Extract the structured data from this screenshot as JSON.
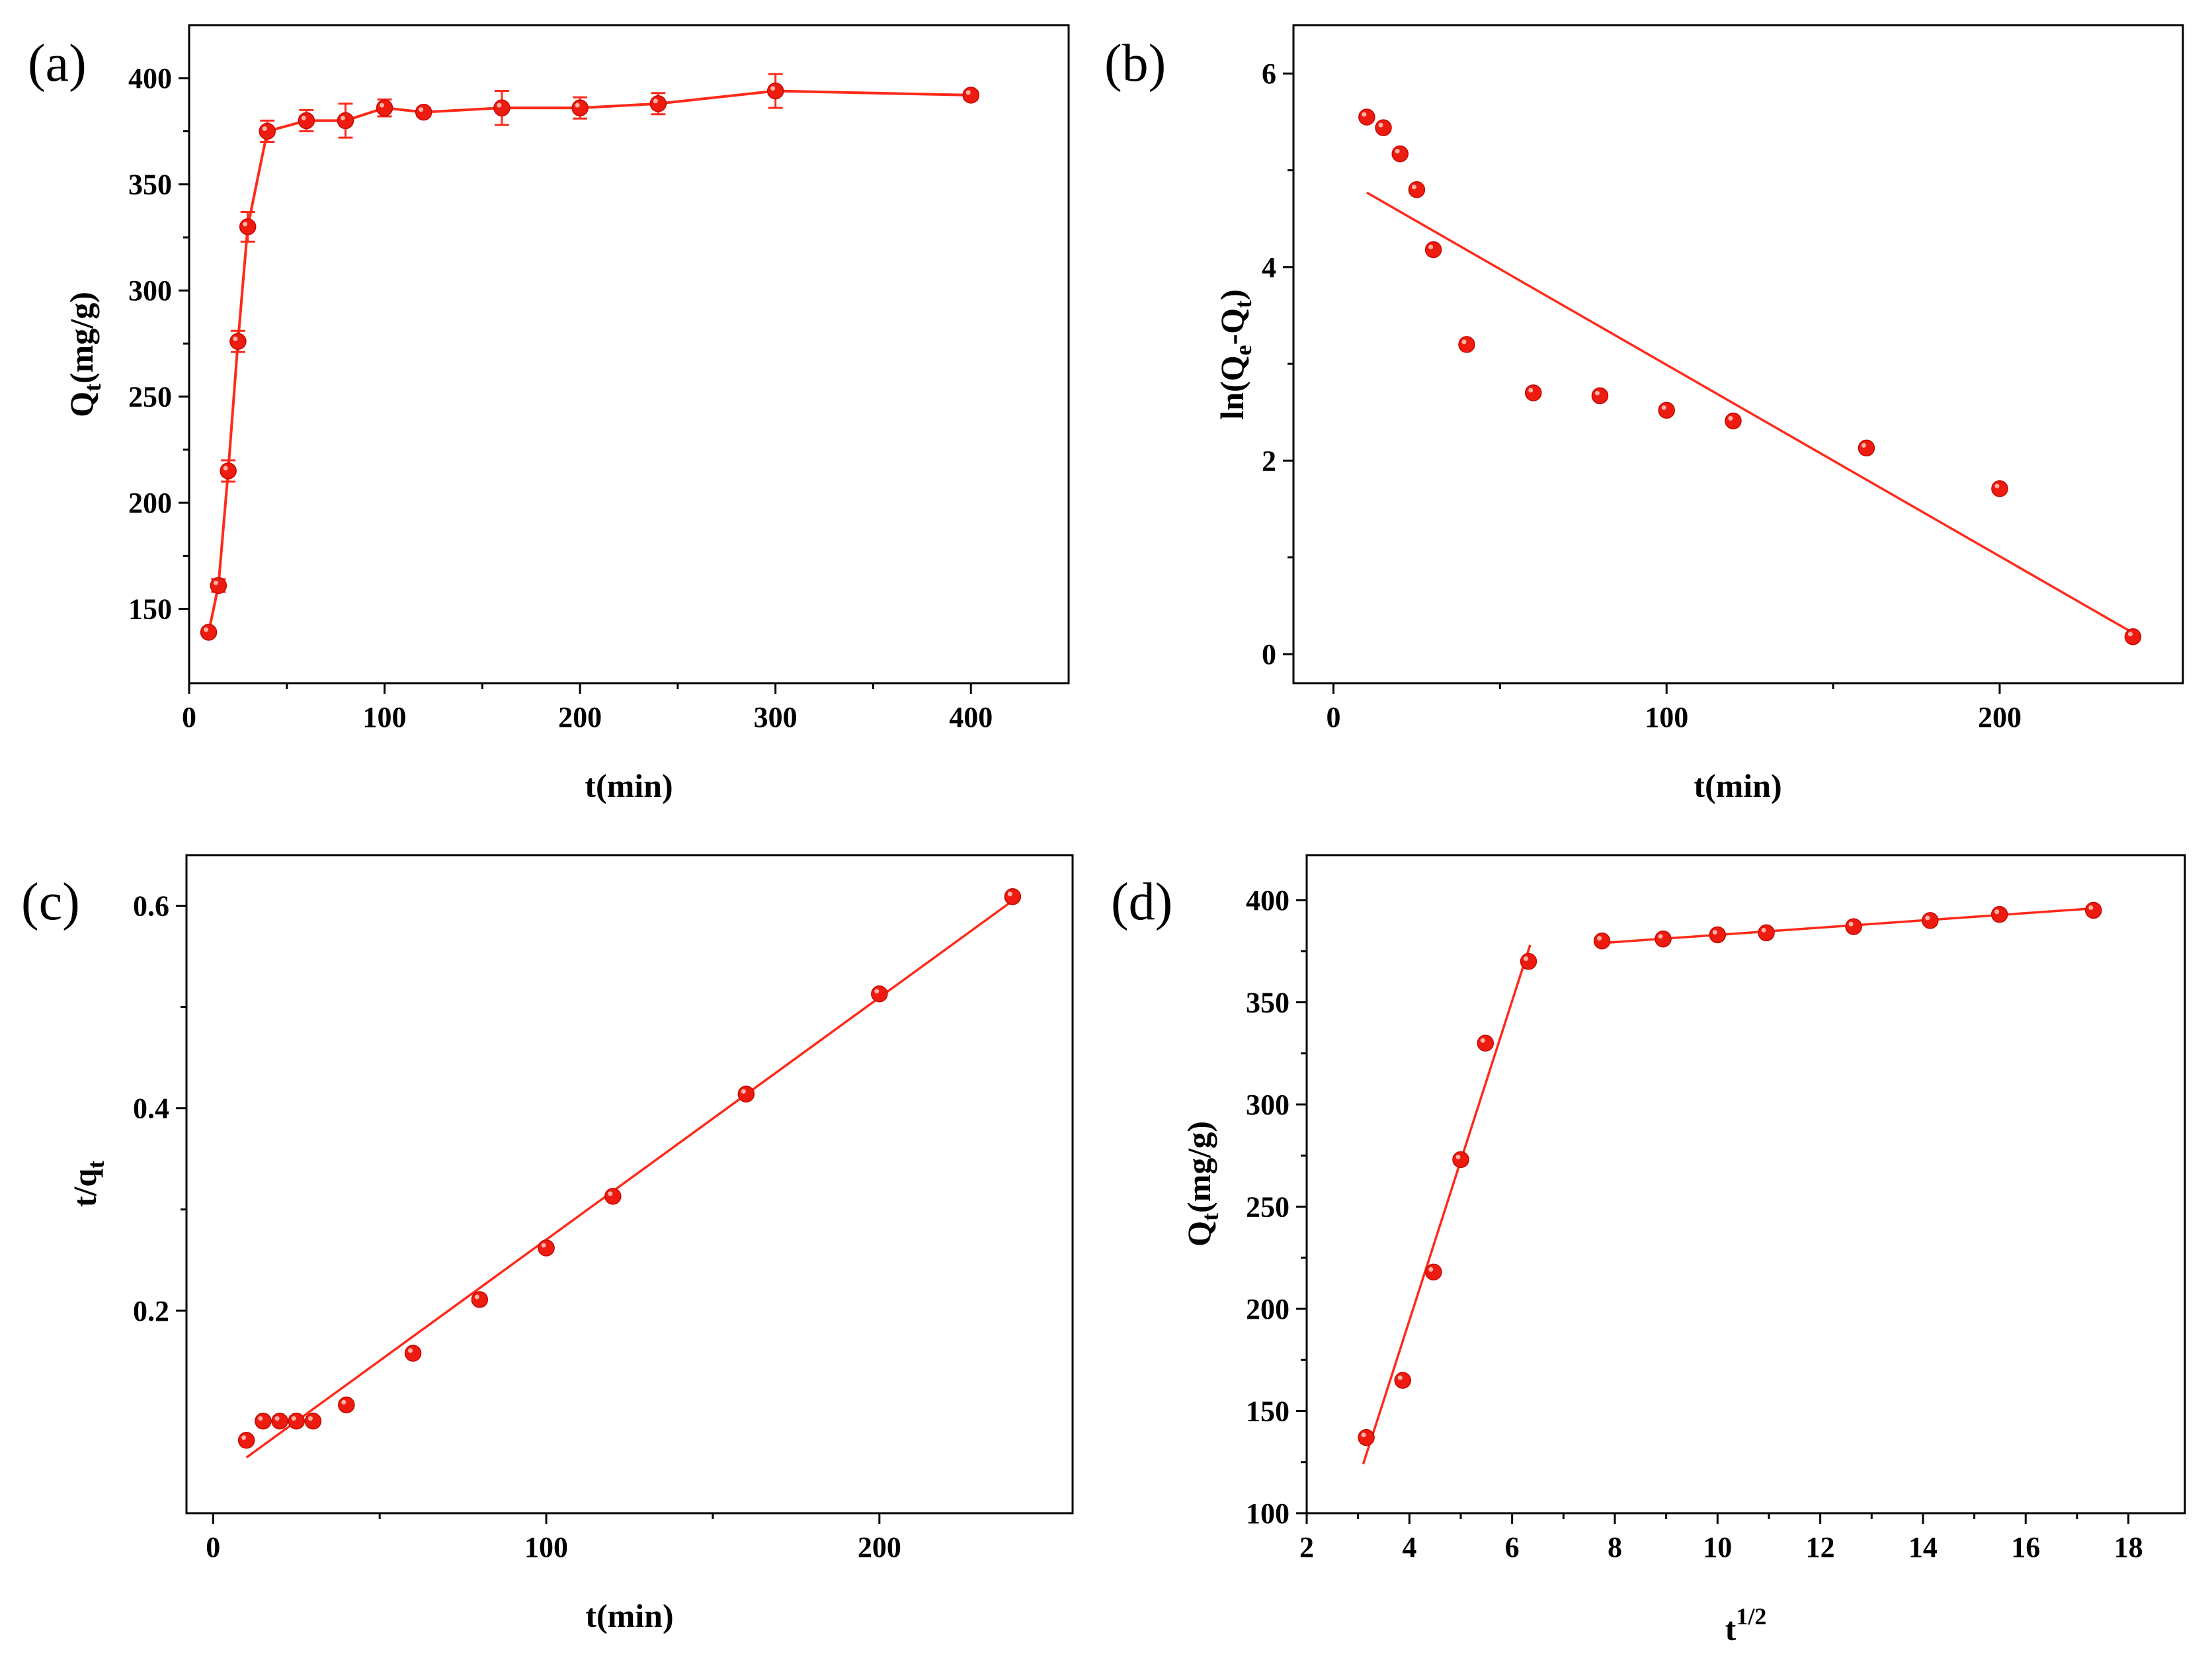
{
  "chart_data": [
    {
      "id": "a",
      "type": "line",
      "panel_label": "(a)",
      "xlabel": "t(min)",
      "ylabel": {
        "main": "Q",
        "sub": "t",
        "rest": "(mg/g)"
      },
      "xlim": [
        0,
        450
      ],
      "ylim": [
        115,
        425
      ],
      "xticks": [
        0,
        100,
        200,
        300,
        400
      ],
      "yticks": [
        150,
        200,
        250,
        300,
        350,
        400
      ],
      "series": [
        {
          "name": "Qt",
          "x": [
            10,
            15,
            20,
            25,
            30,
            40,
            60,
            80,
            100,
            120,
            160,
            200,
            240,
            300,
            400
          ],
          "y": [
            139,
            161,
            215,
            276,
            330,
            375,
            380,
            380,
            386,
            384,
            386,
            386,
            388,
            394,
            392
          ],
          "err": [
            0,
            3,
            5,
            5,
            7,
            5,
            5,
            8,
            4,
            2,
            8,
            5,
            5,
            8,
            2
          ]
        }
      ]
    },
    {
      "id": "b",
      "type": "scatter",
      "panel_label": "(b)",
      "xlabel": "t(min)",
      "ylabel": {
        "main": "ln(Q",
        "sub": "e",
        "mid": "-Q",
        "sub2": "t",
        "rest": ")"
      },
      "xlim": [
        -12,
        255
      ],
      "ylim": [
        -0.3,
        6.5
      ],
      "xticks": [
        0,
        100,
        200
      ],
      "yticks": [
        0,
        2,
        4,
        6
      ],
      "series": [
        {
          "name": "ln(Qe-Qt)",
          "x": [
            10,
            15,
            20,
            25,
            30,
            40,
            60,
            80,
            100,
            120,
            160,
            200,
            240
          ],
          "y": [
            5.55,
            5.44,
            5.17,
            4.8,
            4.18,
            3.2,
            2.7,
            2.67,
            2.52,
            2.41,
            2.13,
            1.71,
            0.18
          ]
        }
      ],
      "fit": {
        "x": [
          10,
          240
        ],
        "y": [
          4.77,
          0.22
        ]
      }
    },
    {
      "id": "c",
      "type": "scatter",
      "panel_label": "(c)",
      "xlabel": "t(min)",
      "ylabel": {
        "main": "t/q",
        "sub": "t",
        "rest": ""
      },
      "xlim": [
        -8,
        258
      ],
      "ylim": [
        0.0,
        0.65
      ],
      "xticks": [
        0,
        100,
        200
      ],
      "yticks": [
        0.2,
        0.4,
        0.6
      ],
      "series": [
        {
          "name": "t/qt",
          "x": [
            10,
            15,
            20,
            25,
            30,
            40,
            60,
            80,
            100,
            120,
            160,
            200,
            240
          ],
          "y": [
            0.072,
            0.091,
            0.091,
            0.091,
            0.091,
            0.107,
            0.158,
            0.211,
            0.262,
            0.313,
            0.414,
            0.513,
            0.609
          ]
        }
      ],
      "fit": {
        "x": [
          10,
          240
        ],
        "y": [
          0.055,
          0.605
        ]
      }
    },
    {
      "id": "d",
      "type": "scatter",
      "panel_label": "(d)",
      "xlabel": {
        "main": "t",
        "sup": "1/2"
      },
      "ylabel": {
        "main": "Q",
        "sub": "t",
        "rest": "(mg/g)"
      },
      "xlim": [
        2,
        19.1
      ],
      "ylim": [
        100,
        422
      ],
      "xticks": [
        2,
        4,
        6,
        8,
        10,
        12,
        14,
        16,
        18
      ],
      "yticks": [
        100,
        150,
        200,
        250,
        300,
        350,
        400
      ],
      "series": [
        {
          "name": "Qt vs t^1/2",
          "x": [
            3.16,
            3.87,
            4.47,
            5.0,
            5.48,
            6.32,
            7.75,
            8.94,
            10.0,
            10.95,
            12.65,
            14.14,
            15.49,
            17.32
          ],
          "y": [
            137,
            165,
            218,
            273,
            330,
            370,
            380,
            381,
            383,
            384,
            387,
            390,
            393,
            395
          ]
        }
      ],
      "fits": [
        {
          "x": [
            3.1,
            6.35
          ],
          "y": [
            124,
            378
          ]
        },
        {
          "x": [
            7.75,
            17.35
          ],
          "y": [
            379,
            396
          ]
        }
      ]
    }
  ]
}
